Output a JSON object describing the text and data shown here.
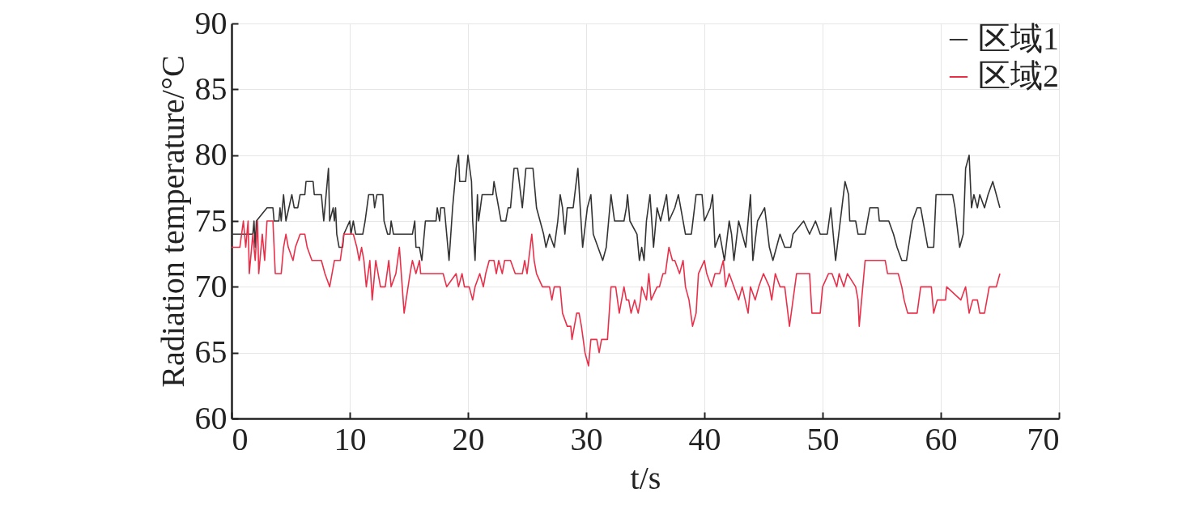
{
  "chart_data": {
    "type": "line",
    "xlabel": "t/s",
    "ylabel": "Radiation temperature/°C",
    "xlim": [
      0,
      70
    ],
    "xticks": [
      0,
      10,
      20,
      30,
      40,
      50,
      60,
      70
    ],
    "ylim": [
      60,
      90
    ],
    "yticks": [
      60,
      65,
      70,
      75,
      80,
      85,
      90
    ],
    "grid": true,
    "legend": "top right",
    "series": [
      {
        "name": "区域1",
        "color": "#333333",
        "x": [
          0,
          1.8,
          1.9,
          2.0,
          2.1,
          3.0,
          3.5,
          3.6,
          4.0,
          4.1,
          4.2,
          4.4,
          4.6,
          5.1,
          5.3,
          5.6,
          5.8,
          6.2,
          6.3,
          6.9,
          7.0,
          7.6,
          7.8,
          8.2,
          8.3,
          8.6,
          8.7,
          8.8,
          8.9,
          9.1,
          9.4,
          9.5,
          10.0,
          10.1,
          10.3,
          10.5,
          11.1,
          11.3,
          11.6,
          12.0,
          12.1,
          12.3,
          12.8,
          12.9,
          13.2,
          13.4,
          13.5,
          13.7,
          15.3,
          15.5,
          15.6,
          15.9,
          16.1,
          16.4,
          17.3,
          17.4,
          17.6,
          17.7,
          18.0,
          18.2,
          18.4,
          18.7,
          18.8,
          19.0,
          19.2,
          19.3,
          19.8,
          20.0,
          20.3,
          20.4,
          20.6,
          20.8,
          20.9,
          21.2,
          22.1,
          22.2,
          22.4,
          22.8,
          23.2,
          23.4,
          23.6,
          23.9,
          24.2,
          24.6,
          24.9,
          25.5,
          25.8,
          26.1,
          26.4,
          26.6,
          26.9,
          27.3,
          27.6,
          27.8,
          28.0,
          28.2,
          28.4,
          28.9,
          29.3,
          29.5,
          29.7,
          30.1,
          30.4,
          30.6,
          31.0,
          31.4,
          31.7,
          32.1,
          32.4,
          33.2,
          33.4,
          33.5,
          33.7,
          34.3,
          34.5,
          34.7,
          34.9,
          35.1,
          35.4,
          35.7,
          36.0,
          36.3,
          36.8,
          37.0,
          37.5,
          37.8,
          38.4,
          38.9,
          39.3,
          39.8,
          40.0,
          40.5,
          40.7,
          40.9,
          41.3,
          41.7,
          42.1,
          42.3,
          42.5,
          42.9,
          43.2,
          43.5,
          43.9,
          44.1,
          44.5,
          45.1,
          45.5,
          45.8,
          46.4,
          46.8,
          47.3,
          47.5,
          48.4,
          48.9,
          49.4,
          49.8,
          50.4,
          50.7,
          51.1,
          51.5,
          51.9,
          52.2,
          52.3,
          52.8,
          53.0,
          53.6,
          54.0,
          54.7,
          54.8,
          55.6,
          56.0,
          56.3,
          56.7,
          57.1,
          57.6,
          58.0,
          58.3,
          58.7,
          58.9,
          59.4,
          59.6,
          60.7,
          61.0,
          61.2,
          61.6,
          61.9,
          62.1,
          62.4,
          62.6,
          62.8,
          63.1,
          63.3,
          63.7,
          64.0,
          64.4,
          64.7,
          65.0
        ],
        "values": [
          74,
          74,
          75,
          73,
          75,
          76,
          76,
          75,
          75,
          76,
          75,
          77,
          75,
          77,
          76,
          76,
          77,
          77,
          78,
          78,
          77,
          77,
          75,
          79,
          75,
          76,
          75,
          76,
          74,
          73,
          73,
          74,
          75,
          74,
          75,
          74,
          74,
          75,
          77,
          77,
          76,
          77,
          77,
          75,
          74,
          74,
          75,
          74,
          74,
          75,
          73,
          73,
          72,
          75,
          75,
          76,
          75,
          76,
          76,
          74,
          72,
          76,
          77,
          79,
          80,
          78,
          78,
          80,
          78,
          75,
          72,
          77,
          75,
          77,
          77,
          78,
          77,
          75,
          75,
          76,
          76,
          79,
          79,
          76,
          79,
          79,
          76,
          75,
          74,
          73,
          74,
          73,
          75,
          77,
          76,
          74,
          76,
          76,
          79,
          76,
          73,
          76,
          77,
          74,
          73,
          72,
          73,
          77,
          75,
          75,
          76,
          77,
          75,
          74,
          72,
          73,
          72,
          75,
          77,
          73,
          76,
          75,
          77,
          75,
          76,
          77,
          74,
          74,
          77,
          77,
          75,
          76,
          77,
          73,
          74,
          72,
          75,
          74,
          72,
          75,
          74,
          73,
          77,
          72,
          75,
          76,
          73,
          72,
          74,
          73,
          73,
          74,
          75,
          74,
          75,
          74,
          74,
          76,
          72,
          75,
          78,
          77,
          75,
          75,
          74,
          74,
          76,
          76,
          75,
          75,
          74,
          73,
          72,
          72,
          75,
          76,
          76,
          74,
          73,
          73,
          77,
          77,
          77,
          76,
          73,
          74,
          79,
          80,
          76,
          77,
          76,
          77,
          76,
          77,
          78,
          77,
          76
        ]
      },
      {
        "name": "区域2",
        "color": "#e8304a",
        "x": [
          0,
          0.7,
          1.0,
          1.2,
          1.4,
          1.5,
          1.8,
          2.0,
          2.2,
          2.3,
          2.6,
          2.8,
          3.0,
          3.5,
          3.7,
          4.2,
          4.4,
          4.6,
          4.8,
          5.2,
          5.4,
          5.8,
          6.2,
          6.4,
          6.8,
          7.6,
          7.9,
          8.3,
          8.5,
          8.7,
          9.2,
          9.5,
          10.3,
          10.6,
          10.8,
          11.0,
          11.2,
          11.4,
          11.7,
          11.9,
          12.2,
          12.6,
          13.0,
          13.3,
          13.5,
          13.9,
          14.2,
          14.6,
          15.1,
          15.3,
          15.6,
          15.9,
          16.0,
          17.9,
          18.2,
          19.0,
          19.2,
          19.5,
          19.7,
          20.1,
          20.4,
          20.6,
          21.0,
          21.3,
          21.5,
          21.8,
          22.2,
          22.4,
          22.6,
          22.9,
          23.1,
          23.6,
          24.0,
          24.6,
          24.8,
          25.0,
          25.4,
          25.6,
          25.8,
          26.3,
          26.9,
          27.1,
          27.3,
          27.8,
          28.0,
          28.4,
          28.7,
          28.8,
          29.2,
          29.4,
          29.6,
          29.9,
          30.2,
          30.4,
          30.9,
          31.1,
          31.3,
          31.8,
          32.1,
          32.5,
          32.8,
          33.2,
          33.4,
          33.6,
          33.8,
          34.1,
          34.4,
          34.6,
          34.7,
          35.1,
          35.3,
          35.5,
          36.0,
          36.2,
          36.5,
          36.7,
          37.0,
          37.3,
          37.5,
          37.9,
          38.2,
          38.4,
          38.7,
          39.0,
          39.3,
          39.5,
          40.0,
          40.2,
          40.6,
          40.9,
          41.3,
          41.6,
          41.8,
          42.1,
          42.5,
          42.9,
          43.2,
          43.7,
          43.9,
          44.3,
          44.6,
          45.0,
          45.5,
          45.7,
          46.0,
          46.4,
          46.8,
          47.2,
          47.5,
          47.8,
          48.9,
          49.1,
          49.8,
          50.0,
          50.5,
          50.8,
          51.2,
          51.4,
          51.8,
          52.1,
          52.8,
          53.0,
          53.1,
          53.4,
          53.6,
          53.9,
          54.4,
          55.3,
          55.5,
          56.4,
          56.7,
          56.9,
          57.2,
          58.0,
          58.3,
          59.2,
          59.4,
          59.7,
          60.4,
          60.5,
          61.7,
          62.1,
          62.4,
          62.7,
          63.1,
          63.3,
          63.7,
          64.1,
          64.7,
          65.0
        ],
        "values": [
          73,
          73,
          75,
          73,
          75,
          71,
          74,
          72,
          75,
          71,
          74,
          72,
          75,
          75,
          71,
          71,
          73,
          74,
          73,
          72,
          73,
          74,
          74,
          73,
          72,
          72,
          71,
          70,
          71,
          72,
          72,
          74,
          74,
          73,
          72,
          73,
          72,
          70,
          72,
          69,
          72,
          70,
          70,
          72,
          70,
          71,
          73,
          68,
          71,
          72,
          71,
          72,
          71,
          71,
          70,
          71,
          70,
          71,
          70,
          70,
          69,
          70,
          71,
          70,
          71,
          72,
          72,
          71,
          72,
          71,
          72,
          72,
          71,
          71,
          72,
          71,
          74,
          72,
          71,
          70,
          70,
          69,
          70,
          70,
          68,
          67,
          67,
          66,
          68,
          68,
          67,
          65,
          64,
          66,
          66,
          65,
          66,
          66,
          70,
          70,
          68,
          70,
          69,
          69,
          68,
          69,
          68,
          69,
          70,
          69,
          71,
          69,
          70,
          70,
          71,
          71,
          73,
          72,
          72,
          71,
          72,
          70,
          69,
          67,
          68,
          71,
          72,
          71,
          70,
          71,
          71,
          72,
          70,
          71,
          70,
          69,
          70,
          68,
          70,
          69,
          70,
          71,
          70,
          69,
          71,
          70,
          70,
          67,
          69,
          71,
          71,
          68,
          68,
          70,
          71,
          71,
          70,
          71,
          70,
          71,
          70,
          69,
          67,
          70,
          72,
          72,
          72,
          72,
          71,
          71,
          70,
          69,
          68,
          68,
          70,
          70,
          68,
          69,
          69,
          70,
          69,
          70,
          68,
          69,
          69,
          68,
          68,
          70,
          70,
          71
        ]
      }
    ]
  }
}
